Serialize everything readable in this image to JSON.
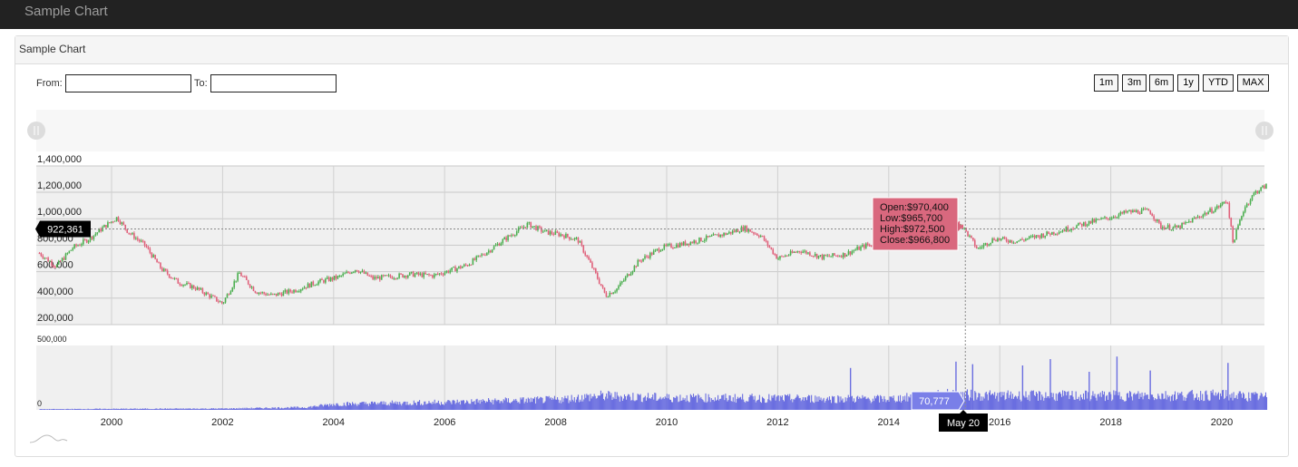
{
  "app": {
    "title": "Sample Chart"
  },
  "panel": {
    "title": "Sample Chart"
  },
  "controls": {
    "from_label": "From:",
    "to_label": "To:",
    "from_value": "",
    "to_value": "",
    "range_buttons": [
      "1m",
      "3m",
      "6m",
      "1y",
      "YTD",
      "MAX"
    ]
  },
  "colors": {
    "up": "#4caf50",
    "down": "#e0607a",
    "volume": "#6a6ee0",
    "tooltip_bg": "#d9687e",
    "plot_bg": "#f0f0f0",
    "navbar": "#222222"
  },
  "icons": [
    "slider-handle-icon",
    "slider-handle-icon",
    "mini-chart-icon"
  ],
  "chart_data": {
    "type": "candlestick",
    "price_axis": {
      "ticks": [
        "1,400,000",
        "1,200,000",
        "1,000,000",
        "800,000",
        "600,000",
        "400,000",
        "200,000"
      ],
      "range": [
        200000,
        1400000
      ]
    },
    "volume_axis": {
      "ticks": [
        "500,000",
        "0"
      ],
      "range": [
        0,
        500000
      ]
    },
    "x_ticks": [
      "2000",
      "2002",
      "2004",
      "2006",
      "2008",
      "2010",
      "2012",
      "2014",
      "2016",
      "2018",
      "2020"
    ],
    "price_series": {
      "x": [
        1998.7,
        1999.0,
        1999.3,
        1999.6,
        1999.9,
        2000.1,
        2000.3,
        2000.6,
        2000.9,
        2001.2,
        2001.5,
        2001.8,
        2002.0,
        2002.3,
        2002.6,
        2002.9,
        2003.3,
        2003.7,
        2004.1,
        2004.4,
        2004.7,
        2005.0,
        2005.4,
        2005.8,
        2006.1,
        2006.4,
        2006.8,
        2007.1,
        2007.5,
        2007.8,
        2008.1,
        2008.4,
        2008.7,
        2008.9,
        2009.1,
        2009.5,
        2009.9,
        2010.3,
        2010.7,
        2011.1,
        2011.4,
        2011.7,
        2012.0,
        2012.4,
        2012.8,
        2013.2,
        2013.6,
        2014.0,
        2014.4,
        2014.7,
        2015.0,
        2015.3,
        2015.6,
        2015.9,
        2016.3,
        2016.7,
        2017.1,
        2017.5,
        2017.9,
        2018.3,
        2018.7,
        2018.9,
        2019.2,
        2019.6,
        2019.9,
        2020.1,
        2020.2,
        2020.4,
        2020.6,
        2020.8
      ],
      "y": [
        740000,
        640000,
        780000,
        850000,
        950000,
        1010000,
        900000,
        800000,
        620000,
        520000,
        480000,
        410000,
        360000,
        590000,
        450000,
        420000,
        460000,
        520000,
        560000,
        620000,
        550000,
        560000,
        580000,
        570000,
        610000,
        650000,
        760000,
        850000,
        960000,
        900000,
        880000,
        840000,
        600000,
        420000,
        470000,
        680000,
        780000,
        810000,
        850000,
        890000,
        930000,
        870000,
        700000,
        760000,
        710000,
        730000,
        800000,
        790000,
        820000,
        890000,
        1020000,
        960000,
        770000,
        850000,
        830000,
        870000,
        910000,
        960000,
        1000000,
        1050000,
        1060000,
        940000,
        930000,
        1020000,
        1080000,
        1140000,
        820000,
        1080000,
        1200000,
        1250000
      ]
    },
    "volume_series": {
      "x": [
        1998.7,
        2000.0,
        2002.0,
        2003.5,
        2004.0,
        2006.0,
        2008.0,
        2008.8,
        2010.0,
        2012.0,
        2014.0,
        2015.0,
        2016.0,
        2018.0,
        2020.0,
        2020.8
      ],
      "y": [
        5000,
        8000,
        10000,
        20000,
        45000,
        60000,
        80000,
        110000,
        95000,
        90000,
        85000,
        120000,
        110000,
        110000,
        115000,
        100000
      ]
    },
    "volume_spikes": [
      {
        "x": 2013.3,
        "y": 330000
      },
      {
        "x": 2015.2,
        "y": 380000
      },
      {
        "x": 2015.5,
        "y": 360000
      },
      {
        "x": 2016.4,
        "y": 350000
      },
      {
        "x": 2016.9,
        "y": 400000
      },
      {
        "x": 2017.6,
        "y": 300000
      },
      {
        "x": 2018.1,
        "y": 420000
      },
      {
        "x": 2018.7,
        "y": 310000
      },
      {
        "x": 2020.1,
        "y": 370000
      }
    ],
    "crosshair": {
      "date": "May 20",
      "x": 2015.38,
      "price": 922361,
      "price_label": "922,361",
      "volume_label": "70,777"
    },
    "tooltip": {
      "open": "Open:$970,400",
      "low": "Low:$965,700",
      "high": "High:$972,500",
      "close": "Close:$966,800"
    }
  }
}
